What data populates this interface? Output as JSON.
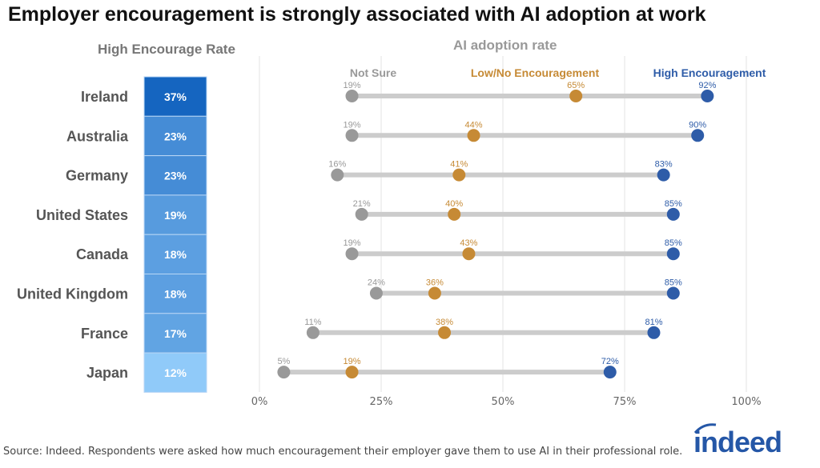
{
  "title": "Employer encouragement is strongly associated with AI adoption at work",
  "source": "Source: Indeed. Respondents were asked how much encouragement their employer gave them to use AI in their professional role.",
  "logo": "indeed",
  "chart_data": [
    {
      "type": "heatmap",
      "title": "High Encourage Rate",
      "categories": [
        "Ireland",
        "Australia",
        "Germany",
        "United States",
        "Canada",
        "United Kingdom",
        "France",
        "Japan"
      ],
      "values": [
        37,
        23,
        23,
        19,
        18,
        18,
        17,
        12
      ],
      "labels": [
        "37%",
        "23%",
        "23%",
        "19%",
        "18%",
        "18%",
        "17%",
        "12%"
      ],
      "colors": {
        "high": "#1565c0",
        "low": "#90caf9"
      }
    },
    {
      "type": "dumbbell",
      "title": "AI adoption rate",
      "categories": [
        "Ireland",
        "Australia",
        "Germany",
        "United States",
        "Canada",
        "United Kingdom",
        "France",
        "Japan"
      ],
      "xlim": [
        0,
        100
      ],
      "xticks": [
        "0%",
        "25%",
        "50%",
        "75%",
        "100%"
      ],
      "grid": true,
      "series": [
        {
          "name": "Not Sure",
          "color": "#999999",
          "values": [
            19,
            19,
            16,
            21,
            19,
            24,
            11,
            5
          ]
        },
        {
          "name": "Low/No Encouragement",
          "color": "#c68a35",
          "values": [
            65,
            44,
            41,
            40,
            43,
            36,
            38,
            19
          ]
        },
        {
          "name": "High Encouragement",
          "color": "#2e5ca8",
          "values": [
            92,
            90,
            83,
            85,
            85,
            85,
            81,
            72
          ]
        }
      ]
    }
  ]
}
